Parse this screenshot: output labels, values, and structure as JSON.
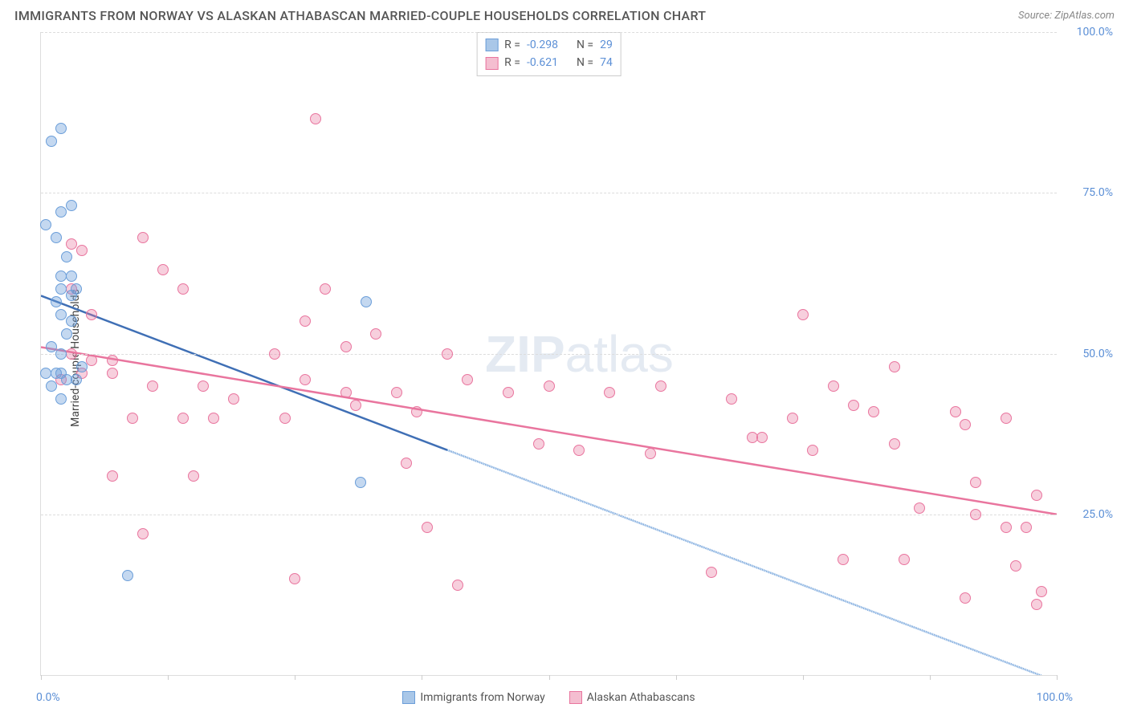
{
  "title": "IMMIGRANTS FROM NORWAY VS ALASKAN ATHABASCAN MARRIED-COUPLE HOUSEHOLDS CORRELATION CHART",
  "source": "Source: ZipAtlas.com",
  "ylabel": "Married-couple Households",
  "watermark_bold": "ZIP",
  "watermark_light": "atlas",
  "chart": {
    "type": "scatter",
    "xlim": [
      0,
      100
    ],
    "ylim": [
      0,
      100
    ],
    "yticks": [
      25,
      50,
      75,
      100
    ],
    "ytick_labels": [
      "25.0%",
      "50.0%",
      "75.0%",
      "100.0%"
    ],
    "xtick_positions": [
      0,
      12.5,
      25,
      37.5,
      50,
      62.5,
      75,
      87.5,
      100
    ],
    "xtick_labels": {
      "0": "0.0%",
      "100": "100.0%"
    },
    "background_color": "#ffffff",
    "grid_color": "#dddddd",
    "point_radius": 7,
    "line_width": 2.5,
    "font": {
      "title_size": 16,
      "label_size": 14,
      "tick_size": 14,
      "tick_color": "#5b8fd6"
    }
  },
  "series": {
    "norway": {
      "label": "Immigrants from Norway",
      "color_fill": "rgba(107,158,217,0.4)",
      "color_stroke": "#6b9ed9",
      "swatch_fill": "#a9c7e8",
      "swatch_border": "#6b9ed9",
      "R": "-0.298",
      "N": "29",
      "trend": {
        "x1": 0,
        "y1": 59,
        "x2": 40,
        "y2": 35,
        "extend_x2": 100,
        "extend_y2": -1
      },
      "points": [
        [
          1,
          83
        ],
        [
          2,
          85
        ],
        [
          2,
          72
        ],
        [
          3,
          73
        ],
        [
          0.5,
          70
        ],
        [
          1.5,
          68
        ],
        [
          2.5,
          65
        ],
        [
          2,
          62
        ],
        [
          3,
          62
        ],
        [
          3.5,
          60
        ],
        [
          2,
          60
        ],
        [
          1.5,
          58
        ],
        [
          3,
          59
        ],
        [
          2,
          56
        ],
        [
          3,
          55
        ],
        [
          2.5,
          53
        ],
        [
          1,
          51
        ],
        [
          2,
          50
        ],
        [
          1.5,
          47
        ],
        [
          2,
          47
        ],
        [
          0.5,
          47
        ],
        [
          2.5,
          46
        ],
        [
          1,
          45
        ],
        [
          2,
          43
        ],
        [
          32,
          58
        ],
        [
          8.5,
          15.5
        ],
        [
          31.5,
          30
        ],
        [
          3.5,
          46
        ],
        [
          4,
          48
        ]
      ]
    },
    "athabascan": {
      "label": "Alaskan Athabascans",
      "color_fill": "rgba(233,117,158,0.35)",
      "color_stroke": "#e9759e",
      "swatch_fill": "#f4bed0",
      "swatch_border": "#e9759e",
      "R": "-0.621",
      "N": "74",
      "trend": {
        "x1": 0,
        "y1": 51,
        "x2": 100,
        "y2": 25
      },
      "points": [
        [
          3,
          67
        ],
        [
          4,
          66
        ],
        [
          10,
          68
        ],
        [
          12,
          63
        ],
        [
          14,
          60
        ],
        [
          27,
          86.5
        ],
        [
          23,
          50
        ],
        [
          10,
          22
        ],
        [
          3,
          50
        ],
        [
          5,
          49
        ],
        [
          7,
          49
        ],
        [
          4,
          47
        ],
        [
          7,
          47
        ],
        [
          11,
          45
        ],
        [
          16,
          45
        ],
        [
          19,
          43
        ],
        [
          9,
          40
        ],
        [
          14,
          40
        ],
        [
          17,
          40
        ],
        [
          7,
          31
        ],
        [
          15,
          31
        ],
        [
          24,
          40
        ],
        [
          26,
          46
        ],
        [
          26,
          55
        ],
        [
          28,
          60
        ],
        [
          30,
          44
        ],
        [
          30,
          51
        ],
        [
          31,
          42
        ],
        [
          33,
          53
        ],
        [
          35,
          44
        ],
        [
          37,
          41
        ],
        [
          36,
          33
        ],
        [
          38,
          23
        ],
        [
          25,
          15
        ],
        [
          40,
          50
        ],
        [
          42,
          46
        ],
        [
          46,
          44
        ],
        [
          50,
          45
        ],
        [
          56,
          44
        ],
        [
          53,
          35
        ],
        [
          41,
          14
        ],
        [
          60,
          34.5
        ],
        [
          61,
          45
        ],
        [
          68,
          43
        ],
        [
          66,
          16
        ],
        [
          70,
          37
        ],
        [
          71,
          37
        ],
        [
          74,
          40
        ],
        [
          75,
          56
        ],
        [
          76,
          35
        ],
        [
          78,
          45
        ],
        [
          79,
          18
        ],
        [
          80,
          42
        ],
        [
          82,
          41
        ],
        [
          84,
          48
        ],
        [
          84,
          36
        ],
        [
          85,
          18
        ],
        [
          90,
          41
        ],
        [
          92,
          25
        ],
        [
          91,
          39
        ],
        [
          91,
          12
        ],
        [
          92,
          30
        ],
        [
          95,
          40
        ],
        [
          95,
          23
        ],
        [
          96,
          17
        ],
        [
          97,
          23
        ],
        [
          98,
          28
        ],
        [
          86.5,
          26
        ],
        [
          98,
          11
        ],
        [
          98.5,
          13
        ],
        [
          49,
          36
        ],
        [
          3,
          60
        ],
        [
          5,
          56
        ],
        [
          2,
          46
        ]
      ]
    }
  },
  "legend_stats": {
    "R_label": "R =",
    "N_label": "N ="
  }
}
